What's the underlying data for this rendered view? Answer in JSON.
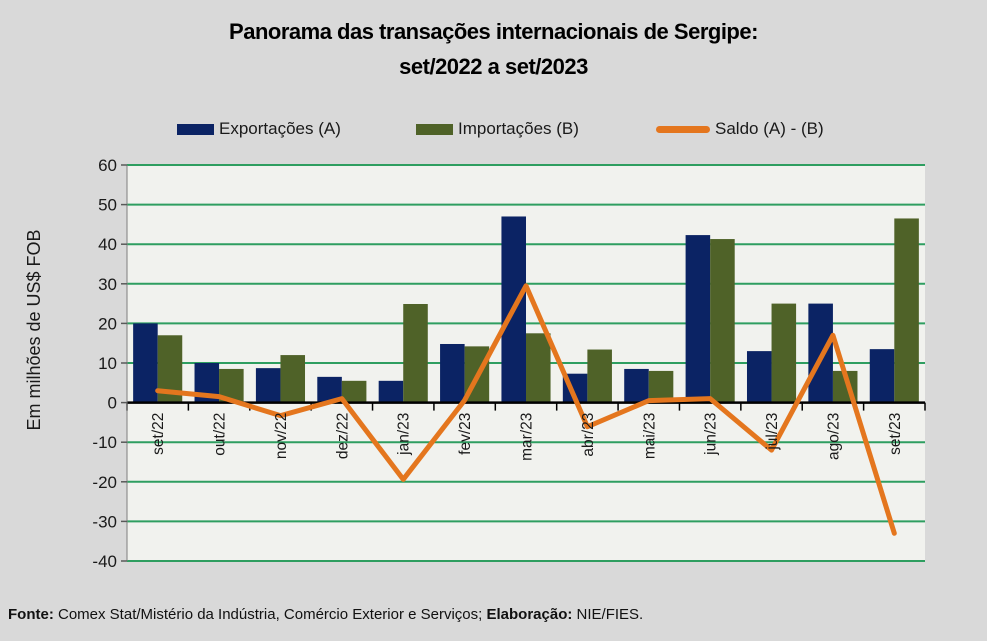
{
  "title": {
    "line1": "Panorama das transações internacionais de Sergipe:",
    "line2": "set/2022 a set/2023"
  },
  "legend": {
    "items": [
      {
        "label": "Exportações (A)",
        "swatch": "bar-swatch-navy"
      },
      {
        "label": "Importações (B)",
        "swatch": "bar-swatch-olive"
      },
      {
        "label": "Saldo (A) - (B)",
        "swatch": "line-swatch-orange"
      }
    ]
  },
  "chart_data": {
    "type": "bar",
    "title": "Panorama das transações internacionais de Sergipe: set/2022 a set/2023",
    "categories": [
      "set/22",
      "out/22",
      "nov/22",
      "dez/22",
      "jan/23",
      "fev/23",
      "mar/23",
      "abr/23",
      "mai/23",
      "jun/23",
      "jul/23",
      "ago/23",
      "set/23"
    ],
    "series": [
      {
        "name": "Exportações (A)",
        "type": "bar",
        "color": "#0b2364",
        "values": [
          20,
          10,
          8.7,
          6.5,
          5.5,
          14.8,
          47,
          7.3,
          8.5,
          42.3,
          13,
          25,
          13.5
        ]
      },
      {
        "name": "Importações (B)",
        "type": "bar",
        "color": "#4f6228",
        "values": [
          17,
          8.5,
          12,
          5.5,
          24.9,
          14.2,
          17.5,
          13.4,
          8,
          41.3,
          25,
          8,
          46.5
        ]
      },
      {
        "name": "Saldo (A) - (B)",
        "type": "line",
        "color": "#e4761e",
        "values": [
          3,
          1.5,
          -3.3,
          1,
          -19.4,
          0.6,
          29.5,
          -6.1,
          0.5,
          1,
          -12,
          17,
          -33
        ]
      }
    ],
    "xlabel": "",
    "ylabel": "Em milhões de US$ FOB",
    "ylim": [
      -40,
      60
    ],
    "ytick_step": 10,
    "grid": true,
    "legend_position": "top"
  },
  "footer": {
    "fonte_label": "Fonte:",
    "fonte_text": " Comex Stat/Mistério da Indústria, Comércio Exterior e Serviços; ",
    "elaboracao_label": "Elaboração:",
    "elaboracao_text": " NIE/FIES."
  },
  "colors": {
    "page_bg": "#d9d9d9",
    "plot_bg": "#f1f2ee",
    "gridline": "#2e9e60",
    "axis_line": "#000000",
    "value_axis_line": "#7f7f7f",
    "bar_exportacoes": "#0b2364",
    "bar_importacoes": "#4f6228",
    "line_saldo": "#e4761e",
    "text": "#1a1a1a"
  }
}
